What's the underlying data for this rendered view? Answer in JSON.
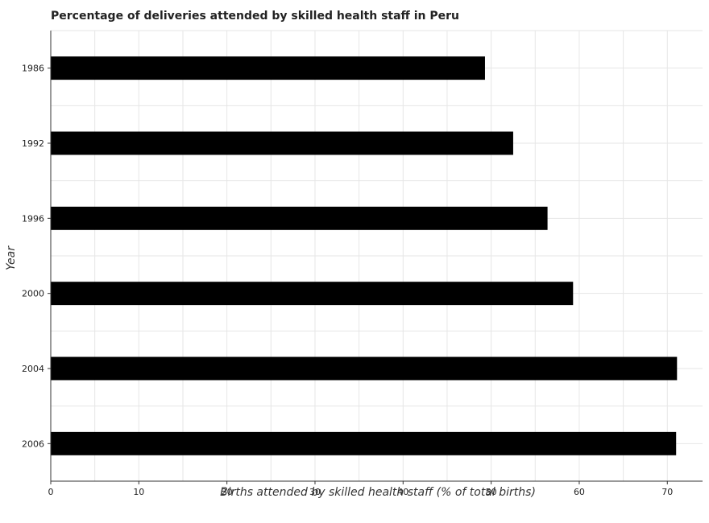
{
  "chart_data": {
    "type": "bar",
    "orientation": "horizontal",
    "title": "Percentage of deliveries attended by skilled health staff in Peru",
    "xlabel": "Births attended by skilled health staff (% of total births)",
    "ylabel": "Year",
    "categories": [
      "1986",
      "1992",
      "1996",
      "2000",
      "2004",
      "2006"
    ],
    "values": [
      49.3,
      52.5,
      56.4,
      59.3,
      71.1,
      71.0
    ],
    "xlim": [
      0,
      74
    ],
    "xticks": [
      0,
      10,
      20,
      30,
      40,
      50,
      60,
      70
    ],
    "grid": true,
    "bar_color": "#000000"
  }
}
